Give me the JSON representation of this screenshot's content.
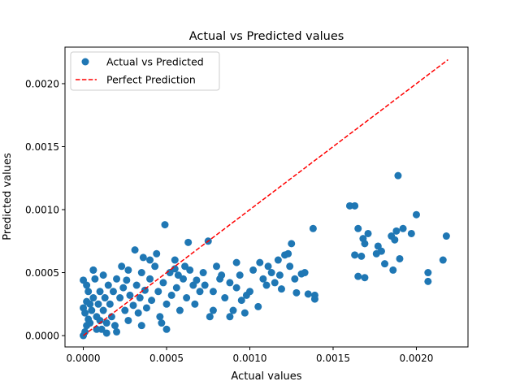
{
  "chart_data": {
    "type": "scatter",
    "title": "Actual vs Predicted values",
    "xlabel": "Actual values",
    "ylabel": "Predicted values",
    "xlim": [
      -0.00011,
      0.00231
    ],
    "ylim": [
      -9e-05,
      0.00229
    ],
    "xticks": [
      0.0,
      0.0005,
      0.001,
      0.0015,
      0.002
    ],
    "xtick_labels": [
      "0.0000",
      "0.0005",
      "0.0010",
      "0.0015",
      "0.0020"
    ],
    "yticks": [
      0.0,
      0.0005,
      0.001,
      0.0015,
      0.002
    ],
    "ytick_labels": [
      "0.0000",
      "0.0005",
      "0.0010",
      "0.0015",
      "0.0020"
    ],
    "grid": false,
    "legend_position": "upper-left",
    "series": [
      {
        "name": "Actual vs Predicted",
        "kind": "scatter",
        "color": "#1f77b4",
        "points": [
          [
            0.0,
            0.0
          ],
          [
            1e-05,
            3e-05
          ],
          [
            2e-05,
            8e-05
          ],
          [
            3e-05,
            0.00013
          ],
          [
            1e-05,
            0.00018
          ],
          [
            0.0,
            0.00022
          ],
          [
            2e-05,
            0.00027
          ],
          [
            4e-05,
            0.0001
          ],
          [
            5e-05,
            0.0002
          ],
          [
            6e-05,
            0.0003
          ],
          [
            3e-05,
            0.00035
          ],
          [
            0.0,
            0.00044
          ],
          [
            2e-05,
            0.0004
          ],
          [
            8e-05,
            0.00015
          ],
          [
            9e-05,
            0.00025
          ],
          [
            0.0001,
            0.00035
          ],
          [
            7e-05,
            0.00045
          ],
          [
            6e-05,
            0.00052
          ],
          [
            0.00012,
            0.0002
          ],
          [
            0.00013,
            0.0003
          ],
          [
            0.00015,
            0.0004
          ],
          [
            0.00014,
            0.0001
          ],
          [
            0.00011,
            5e-05
          ],
          [
            0.00016,
            0.00025
          ],
          [
            0.00018,
            0.00035
          ],
          [
            0.0002,
            0.00045
          ],
          [
            0.00017,
            0.00015
          ],
          [
            0.00019,
            8e-05
          ],
          [
            0.00022,
            0.0003
          ],
          [
            0.00024,
            0.00038
          ],
          [
            0.00025,
            0.0002
          ],
          [
            0.00027,
            0.00012
          ],
          [
            0.00026,
            0.00044
          ],
          [
            0.00028,
            0.00032
          ],
          [
            0.0003,
            0.00024
          ],
          [
            0.00032,
            0.0004
          ],
          [
            0.00033,
            0.00018
          ],
          [
            0.00035,
            0.0005
          ],
          [
            0.00034,
            0.0003
          ],
          [
            0.00037,
            0.00036
          ],
          [
            0.00038,
            0.00022
          ],
          [
            0.0004,
            0.00045
          ],
          [
            0.00041,
            0.00028
          ],
          [
            0.00043,
            0.00055
          ],
          [
            0.00045,
            0.00035
          ],
          [
            0.00046,
            0.00015
          ],
          [
            0.00048,
            0.00042
          ],
          [
            0.0005,
            0.00025
          ],
          [
            0.00052,
            0.0005
          ],
          [
            0.00053,
            0.00032
          ],
          [
            0.00055,
            0.0006
          ],
          [
            0.00056,
            0.00038
          ],
          [
            0.00058,
            0.0002
          ],
          [
            0.0006,
            0.00045
          ],
          [
            0.00062,
            0.0003
          ],
          [
            0.00064,
            0.00052
          ],
          [
            0.00066,
            0.0004
          ],
          [
            0.00067,
            0.00025
          ],
          [
            0.0007,
            0.00035
          ],
          [
            0.00072,
            0.0005
          ],
          [
            0.00036,
            0.00062
          ],
          [
            0.00031,
            0.00068
          ],
          [
            0.00044,
            0.00065
          ],
          [
            0.0004,
            0.0006
          ],
          [
            0.00049,
            0.00088
          ],
          [
            0.00055,
            0.00053
          ],
          [
            0.00063,
            0.00074
          ],
          [
            0.00075,
            0.00075
          ],
          [
            0.00023,
            0.00055
          ],
          [
            0.00027,
            0.00052
          ],
          [
            0.00012,
            0.00048
          ],
          [
            6e-05,
            0.00052
          ],
          [
            4e-05,
            0.00025
          ],
          [
            8e-05,
            5e-05
          ],
          [
            0.00014,
            2e-05
          ],
          [
            0.0001,
            0.00012
          ],
          [
            0.0002,
            3e-05
          ],
          [
            0.00035,
            8e-05
          ],
          [
            0.0005,
            5e-05
          ],
          [
            0.00047,
            0.0001
          ],
          [
            0.00057,
            0.00048
          ],
          [
            0.00061,
            0.00055
          ],
          [
            0.00068,
            0.00044
          ],
          [
            0.00073,
            0.0004
          ],
          [
            0.00078,
            0.00035
          ],
          [
            0.0008,
            0.00055
          ],
          [
            0.00082,
            0.00045
          ],
          [
            0.00085,
            0.0003
          ],
          [
            0.00078,
            0.0002
          ],
          [
            0.00076,
            0.00015
          ],
          [
            0.00088,
            0.00042
          ],
          [
            0.0009,
            0.0002
          ],
          [
            0.00092,
            0.00038
          ],
          [
            0.00094,
            0.00048
          ],
          [
            0.00095,
            0.00028
          ],
          [
            0.00097,
            0.00018
          ],
          [
            0.00088,
            0.00015
          ],
          [
            0.00092,
            0.00058
          ],
          [
            0.00098,
            0.00032
          ],
          [
            0.001,
            0.00035
          ],
          [
            0.00102,
            0.00052
          ],
          [
            0.00105,
            0.00023
          ],
          [
            0.00106,
            0.00058
          ],
          [
            0.00108,
            0.00045
          ],
          [
            0.0011,
            0.0004
          ],
          [
            0.00111,
            0.00055
          ],
          [
            0.00113,
            0.0005
          ],
          [
            0.00115,
            0.00042
          ],
          [
            0.00117,
            0.0006
          ],
          [
            0.00118,
            0.00048
          ],
          [
            0.00119,
            0.00037
          ],
          [
            0.00121,
            0.00064
          ],
          [
            0.00123,
            0.00065
          ],
          [
            0.00124,
            0.00055
          ],
          [
            0.00125,
            0.00073
          ],
          [
            0.00127,
            0.00045
          ],
          [
            0.00128,
            0.00034
          ],
          [
            0.00131,
            0.00049
          ],
          [
            0.00133,
            0.0005
          ],
          [
            0.00135,
            0.00033
          ],
          [
            0.00138,
            0.00085
          ],
          [
            0.00139,
            0.00032
          ],
          [
            0.00139,
            0.00029
          ],
          [
            0.00083,
            0.00048
          ],
          [
            0.0016,
            0.00103
          ],
          [
            0.00163,
            0.00103
          ],
          [
            0.00163,
            0.00064
          ],
          [
            0.00165,
            0.00085
          ],
          [
            0.00165,
            0.00047
          ],
          [
            0.00167,
            0.00063
          ],
          [
            0.00168,
            0.00077
          ],
          [
            0.00169,
            0.00073
          ],
          [
            0.00169,
            0.00046
          ],
          [
            0.00171,
            0.00081
          ],
          [
            0.00176,
            0.00065
          ],
          [
            0.00177,
            0.00071
          ],
          [
            0.00179,
            0.00067
          ],
          [
            0.00181,
            0.00057
          ],
          [
            0.00185,
            0.00079
          ],
          [
            0.00186,
            0.00052
          ],
          [
            0.00187,
            0.00076
          ],
          [
            0.00188,
            0.00083
          ],
          [
            0.00189,
            0.00127
          ],
          [
            0.0019,
            0.00061
          ],
          [
            0.00192,
            0.00085
          ],
          [
            0.00197,
            0.00081
          ],
          [
            0.002,
            0.00096
          ],
          [
            0.00207,
            0.0005
          ],
          [
            0.00207,
            0.00043
          ],
          [
            0.00216,
            0.0006
          ],
          [
            0.00218,
            0.00079
          ]
        ]
      },
      {
        "name": "Perfect Prediction",
        "kind": "line",
        "color": "#ff0000",
        "dash": "dashed",
        "x": [
          0.0,
          0.00219
        ],
        "y": [
          0.0,
          0.00219
        ]
      }
    ]
  }
}
